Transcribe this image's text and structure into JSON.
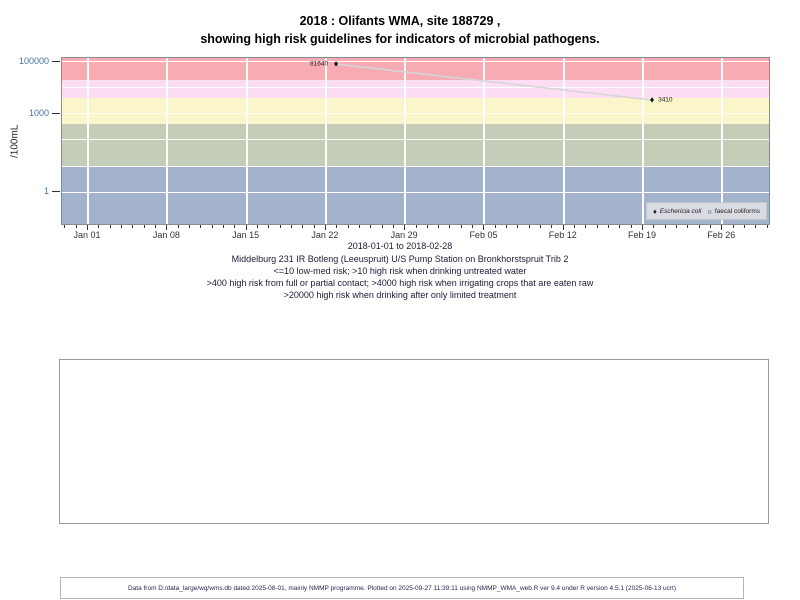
{
  "title": {
    "line1": "2018 : Olifants WMA, site 188729 ,",
    "line2": "showing high risk guidelines for indicators of microbial pathogens."
  },
  "chart_data": {
    "type": "scatter",
    "title": "2018 : Olifants WMA, site 188729 , showing high risk guidelines for indicators of microbial pathogens.",
    "ylabel": "/100mL",
    "subtitle": "2018-01-01 to 2018-02-28",
    "ylim": [
      0.05,
      140000
    ],
    "xlim_days": [
      -2.3,
      60.3
    ],
    "grid": "white major gridlines on colored risk bands",
    "x_ticks": [
      {
        "label": "Jan 01",
        "day": 0
      },
      {
        "label": "Jan 08",
        "day": 7
      },
      {
        "label": "Jan 15",
        "day": 14
      },
      {
        "label": "Jan 22",
        "day": 21
      },
      {
        "label": "Jan 29",
        "day": 28
      },
      {
        "label": "Feb 05",
        "day": 35
      },
      {
        "label": "Feb 12",
        "day": 42
      },
      {
        "label": "Feb 19",
        "day": 49
      },
      {
        "label": "Feb 26",
        "day": 56
      }
    ],
    "x_minor_tick_day_range": [
      -2,
      60
    ],
    "y_ticks": [
      {
        "label": "100000",
        "value": 100000
      },
      {
        "label": "1000",
        "value": 1000
      },
      {
        "label": "1",
        "value": 1
      }
    ],
    "y_gridline_values": [
      1,
      10,
      100,
      1000,
      10000,
      100000
    ],
    "bands": [
      {
        "meaning": "high risk when drinking after only limited treatment",
        "from": 20000,
        "to": 140000,
        "color": "#f9abb4"
      },
      {
        "meaning": "high risk when irrigating crops that are eaten raw",
        "from": 4000,
        "to": 20000,
        "color": "#fcddf3"
      },
      {
        "meaning": "high risk from full or partial contact",
        "from": 400,
        "to": 4000,
        "color": "#fbf6ca"
      },
      {
        "meaning": "high risk when drinking untreated water",
        "from": 10,
        "to": 400,
        "color": "#c4cdb8"
      },
      {
        "meaning": "low-med risk",
        "from": 0.05,
        "to": 10,
        "color": "#a3b3cb"
      }
    ],
    "series": [
      {
        "name": "Eschericia coli",
        "marker": "filled-diamond",
        "marker_glyph": "♦",
        "marker_color": "#111111",
        "line_color": "#d6d6d6",
        "points": [
          {
            "day": 21.9,
            "value": 81640,
            "label": "81640",
            "label_side": "left"
          },
          {
            "day": 49.8,
            "value": 3410,
            "label": "3410",
            "label_side": "right"
          }
        ]
      }
    ],
    "legend": {
      "position": "bottom-right-inside",
      "items": [
        {
          "glyph": "♦",
          "label": "Eschericia coli",
          "italic": true
        },
        {
          "glyph": "○",
          "label": "faecal coliforms",
          "italic": false
        }
      ]
    },
    "captions": [
      "Middelburg 231 IR Botleng (Leeuspruit) U/S Pump Station on Bronkhorstspruit Trib 2",
      "<=10 low-med risk; >10 high risk when drinking untreated water",
      ">400 high risk from full or partial contact; >4000 high risk when irrigating crops that are eaten raw",
      ">20000 high risk when drinking after only limited treatment"
    ]
  },
  "footer": {
    "text": "Data from D:/data_large/wq/wms.db dated 2025-08-01, mainly NMMP programme. Plotted on 2025-09-27 11:39:11 using NMMP_WMA_web.R ver 9.4 under R version 4.5.1 (2025-06-13 ucrt)"
  }
}
